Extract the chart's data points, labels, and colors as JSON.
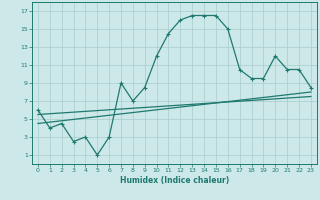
{
  "bg_color": "#cde8e8",
  "grid_color": "#a8cccc",
  "line_color": "#1e7a70",
  "xlabel": "Humidex (Indice chaleur)",
  "xlim": [
    -0.5,
    23.5
  ],
  "ylim": [
    0,
    18
  ],
  "xticks": [
    0,
    1,
    2,
    3,
    4,
    5,
    6,
    7,
    8,
    9,
    10,
    11,
    12,
    13,
    14,
    15,
    16,
    17,
    18,
    19,
    20,
    21,
    22,
    23
  ],
  "yticks": [
    1,
    3,
    5,
    7,
    9,
    11,
    13,
    15,
    17
  ],
  "line1_x": [
    0,
    1,
    2,
    3,
    4,
    5,
    6,
    7,
    8,
    9,
    10,
    11,
    12,
    13,
    14,
    15,
    16,
    17,
    18,
    19,
    20,
    21,
    22,
    23
  ],
  "line1_y": [
    6,
    4,
    4.5,
    2.5,
    3,
    1,
    3,
    9,
    7,
    8.5,
    12,
    14.5,
    16,
    16.5,
    16.5,
    16.5,
    15,
    10.5,
    9.5,
    9.5,
    12,
    10.5,
    10.5,
    8.5
  ],
  "line2_x": [
    0,
    23
  ],
  "line2_y": [
    4.5,
    8.0
  ],
  "line3_x": [
    0,
    23
  ],
  "line3_y": [
    5.5,
    7.5
  ]
}
